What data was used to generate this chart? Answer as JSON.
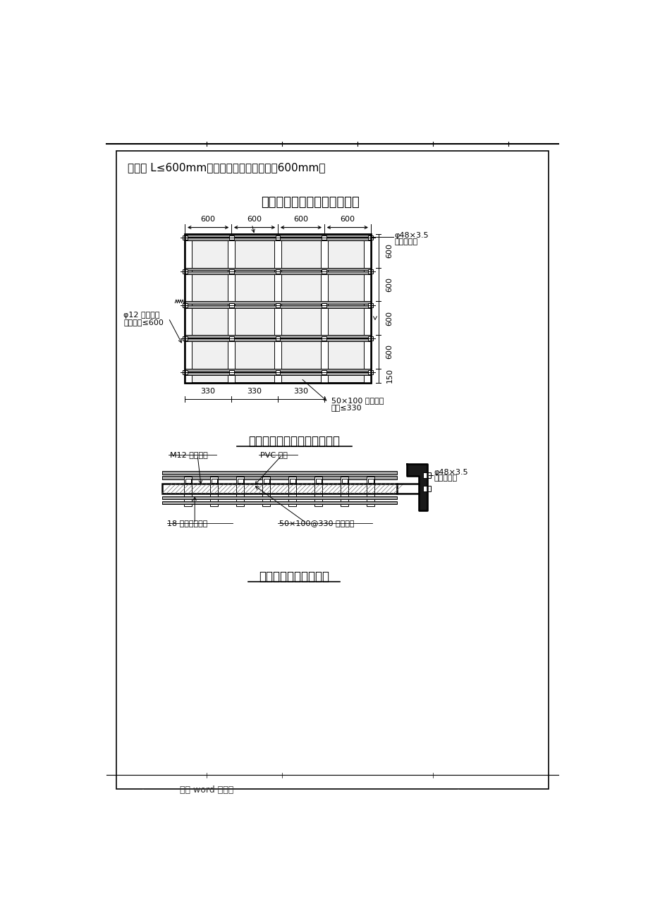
{
  "page_title": "专业 word 可编辑",
  "header_text": "栓间距 L≤600mm。详后支模附图所示为（600mm）",
  "title1": "剪力墙（薄壁柱）模板安装图",
  "title2": "墙模板竖楞枋立面布置示意图",
  "title3": "墙模板支模断面示意图",
  "label_bolt1": "φ12 对拉螺栓",
  "label_bolt1b": "纵横间距≤600",
  "label_tube1": "φ48×3.5",
  "label_tube1b": "双钢管横楞",
  "label_wood": "50×100 木枋竖楞",
  "label_gap": "间距≤330",
  "label_bolt2": "M12 对拉螺栓",
  "label_pvc": "PVC 套管",
  "label_tube2": "φ48×3.5",
  "label_tube2b": "双钢管横楞",
  "label_ply": "18 厚九层胶合板",
  "label_stud": "50×100@330 竖楞木枋",
  "bg_color": "#ffffff",
  "lc": "#000000",
  "steel_gray": "#a0a0a0",
  "dark_fill": "#303030",
  "hatch_color": "#606060"
}
